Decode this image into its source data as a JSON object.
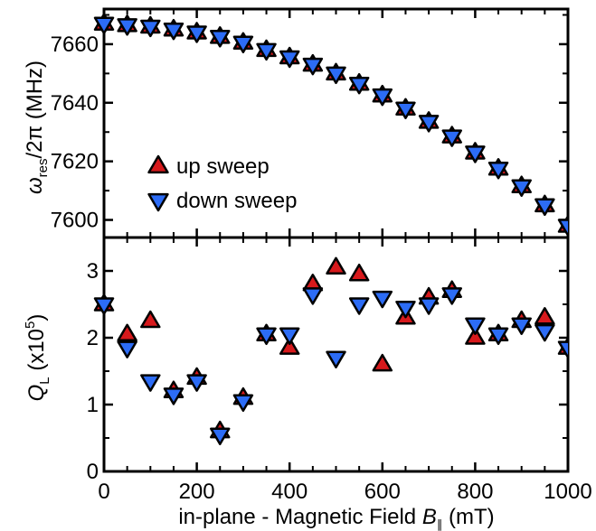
{
  "chart_data": [
    {
      "panel": "top",
      "type": "scatter",
      "ylabel": {
        "main": "ω",
        "sub": "res",
        "rest": "/2π (MHz)"
      },
      "xlim": [
        0,
        1000
      ],
      "ylim": [
        7594,
        7672
      ],
      "yticks": [
        7600,
        7620,
        7640,
        7660
      ],
      "ytick_labels": [
        "7600",
        "7620",
        "7640",
        "7660"
      ],
      "legend_position": "lower-left",
      "series": [
        {
          "name": "up sweep",
          "marker": "triangle-up",
          "color": "#d7191c",
          "x": [
            0,
            50,
            100,
            150,
            200,
            250,
            300,
            350,
            400,
            450,
            500,
            550,
            600,
            650,
            700,
            750,
            800,
            850,
            900,
            950,
            1000
          ],
          "y": [
            7667,
            7666.5,
            7666,
            7665,
            7664,
            7662.5,
            7660.5,
            7658,
            7655.5,
            7653,
            7650,
            7646.5,
            7642.5,
            7638,
            7633.5,
            7628.5,
            7623,
            7617.5,
            7611.5,
            7605,
            7598
          ]
        },
        {
          "name": "down sweep",
          "marker": "triangle-down",
          "color": "#2c6cf6",
          "x": [
            0,
            50,
            100,
            150,
            200,
            250,
            300,
            350,
            400,
            450,
            500,
            550,
            600,
            650,
            700,
            750,
            800,
            850,
            900,
            950,
            1000
          ],
          "y": [
            7667,
            7666.5,
            7666,
            7665,
            7664,
            7662.5,
            7660.5,
            7658,
            7655.5,
            7653,
            7650,
            7646.5,
            7642.5,
            7638,
            7633.5,
            7628.5,
            7623,
            7617.5,
            7611.5,
            7605,
            7598
          ]
        }
      ]
    },
    {
      "panel": "bottom",
      "type": "scatter",
      "ylabel": {
        "main": "Q",
        "sub": "L",
        "rest": " (x10",
        "sup": "5",
        "close": ")"
      },
      "xlabel": {
        "main": "in-plane - Magnetic Field ",
        "italic": "B",
        "sub": "∥",
        "rest": " (mT)"
      },
      "xlim": [
        0,
        1000
      ],
      "ylim": [
        0,
        3.5
      ],
      "xticks": [
        0,
        200,
        400,
        600,
        800,
        1000
      ],
      "xtick_labels": [
        "0",
        "200",
        "400",
        "600",
        "800",
        "1000"
      ],
      "yticks": [
        0,
        1,
        2,
        3
      ],
      "ytick_labels": [
        "0",
        "1",
        "2",
        "3"
      ],
      "series": [
        {
          "name": "up sweep",
          "marker": "triangle-up",
          "color": "#d7191c",
          "x": [
            0,
            50,
            100,
            150,
            200,
            250,
            300,
            350,
            400,
            450,
            500,
            550,
            600,
            650,
            700,
            750,
            800,
            850,
            900,
            950,
            1000
          ],
          "y": [
            2.5,
            2.05,
            2.25,
            1.2,
            1.4,
            0.6,
            1.1,
            2.05,
            1.85,
            2.8,
            3.05,
            2.95,
            1.6,
            2.3,
            2.6,
            2.7,
            2.0,
            2.05,
            2.25,
            2.3,
            1.85
          ]
        },
        {
          "name": "down sweep",
          "marker": "triangle-down",
          "color": "#2c6cf6",
          "x": [
            0,
            50,
            100,
            150,
            200,
            250,
            300,
            350,
            400,
            450,
            500,
            550,
            600,
            650,
            700,
            750,
            800,
            850,
            900,
            950,
            1000
          ],
          "y": [
            2.5,
            1.85,
            1.35,
            1.15,
            1.35,
            0.55,
            1.05,
            2.05,
            2.05,
            2.65,
            1.7,
            2.5,
            2.6,
            2.45,
            2.5,
            2.65,
            2.2,
            2.05,
            2.2,
            2.1,
            1.85
          ]
        }
      ]
    }
  ]
}
